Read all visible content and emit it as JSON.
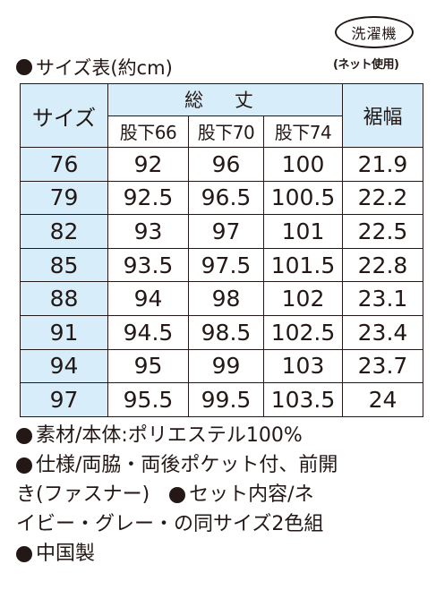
{
  "badge": {
    "label": "洗濯機",
    "note": "(ネット使用)"
  },
  "table": {
    "title": "サイズ表(約cm)",
    "header": {
      "size": "サイズ",
      "total_length": "総 丈",
      "inseam": [
        "股下66",
        "股下70",
        "股下74"
      ],
      "hem_width": "裾幅"
    },
    "rows": [
      {
        "size": "76",
        "v66": "92",
        "v70": "96",
        "v74": "100",
        "hem": "21.9"
      },
      {
        "size": "79",
        "v66": "92.5",
        "v70": "96.5",
        "v74": "100.5",
        "hem": "22.2"
      },
      {
        "size": "82",
        "v66": "93",
        "v70": "97",
        "v74": "101",
        "hem": "22.5"
      },
      {
        "size": "85",
        "v66": "93.5",
        "v70": "97.5",
        "v74": "101.5",
        "hem": "22.8"
      },
      {
        "size": "88",
        "v66": "94",
        "v70": "98",
        "v74": "102",
        "hem": "23.1"
      },
      {
        "size": "91",
        "v66": "94.5",
        "v70": "98.5",
        "v74": "102.5",
        "hem": "23.4"
      },
      {
        "size": "94",
        "v66": "95",
        "v70": "99",
        "v74": "103",
        "hem": "23.7"
      },
      {
        "size": "97",
        "v66": "95.5",
        "v70": "99.5",
        "v74": "103.5",
        "hem": "24"
      }
    ]
  },
  "notes": {
    "material": "素材/本体:ポリエステル100%",
    "spec_line1": "仕様/両脇・両後ポケット付、前開",
    "spec_line2": "き(ファスナー)",
    "set_line1": "セット内容/ネ",
    "set_line2": "イビー・グレー・の同サイズ2色組",
    "origin": "中国製"
  },
  "colors": {
    "header_bg": "#d7edf9",
    "text": "#231815"
  }
}
